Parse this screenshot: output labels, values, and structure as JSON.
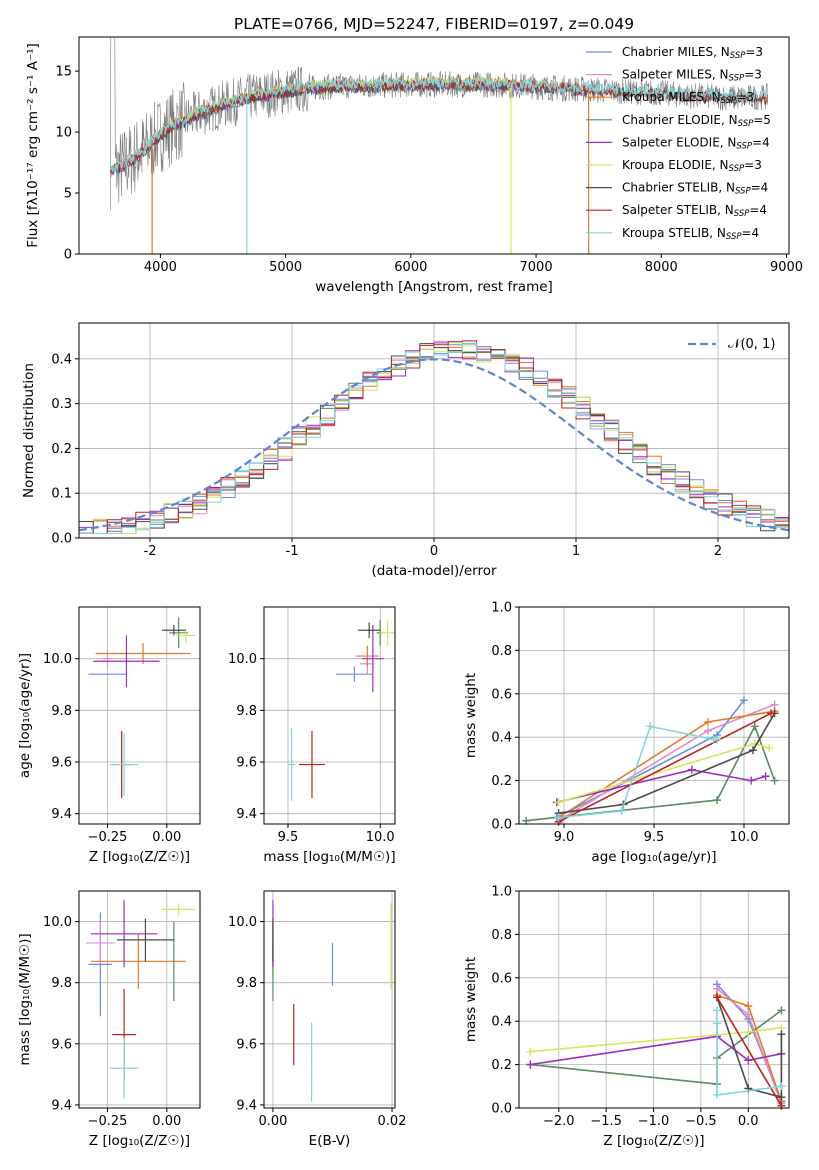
{
  "figure": {
    "title": "PLATE=0766, MJD=52247, FIBERID=0197, z=0.049"
  },
  "colors": {
    "chab_miles": "#6a8ee0",
    "salp_miles": "#e58ac9",
    "krou_miles": "#e07b27",
    "chab_elodie": "#5c8a62",
    "salp_elodie": "#9b2fbf",
    "krou_elodie": "#d8e55a",
    "chab_stelib": "#4a4a4a",
    "salp_stelib": "#c0201c",
    "krou_stelib": "#7fd6d9",
    "data_spec": "#7a7a7a",
    "normal_curve": "#5b86d6"
  },
  "chart_data": [
    {
      "id": "spectrum",
      "type": "line",
      "xlabel": "wavelength [Angstrom, rest frame]",
      "ylabel": "Flux [fλ10⁻¹⁷ erg cm⁻² s⁻¹ A⁻¹]",
      "xlim": [
        3350,
        9020
      ],
      "ylim": [
        0,
        17.8
      ],
      "xticks": [
        4000,
        5000,
        6000,
        7000,
        8000,
        9000
      ],
      "yticks": [
        0,
        5,
        10,
        15
      ],
      "grid": false,
      "legend_position": "top-right",
      "legend": [
        {
          "name": "Chabrier MILES, N",
          "sub": "SSP",
          "tail": "=3",
          "color_key": "chab_miles"
        },
        {
          "name": "Salpeter MILES, N",
          "sub": "SSP",
          "tail": "=3",
          "color_key": "salp_miles"
        },
        {
          "name": "Kroupa MILES, N",
          "sub": "SSP",
          "tail": "=3",
          "color_key": "krou_miles"
        },
        {
          "name": "Chabrier ELODIE, N",
          "sub": "SSP",
          "tail": "=5",
          "color_key": "chab_elodie"
        },
        {
          "name": "Salpeter ELODIE, N",
          "sub": "SSP",
          "tail": "=4",
          "color_key": "salp_elodie"
        },
        {
          "name": "Kroupa ELODIE, N",
          "sub": "SSP",
          "tail": "=3",
          "color_key": "krou_elodie"
        },
        {
          "name": "Chabrier STELIB, N",
          "sub": "SSP",
          "tail": "=4",
          "color_key": "chab_stelib"
        },
        {
          "name": "Salpeter STELIB, N",
          "sub": "SSP",
          "tail": "=4",
          "color_key": "salp_stelib"
        },
        {
          "name": "Kroupa STELIB, N",
          "sub": "SSP",
          "tail": "=4",
          "color_key": "krou_stelib"
        }
      ],
      "continuum": {
        "x": [
          3600,
          3700,
          3800,
          3900,
          4000,
          4100,
          4200,
          4300,
          4500,
          4700,
          4900,
          5100,
          5300,
          5500,
          5700,
          6000,
          6300,
          6600,
          6900,
          7200,
          7400,
          7600,
          7800,
          8000,
          8200,
          8400,
          8600,
          8850
        ],
        "y": [
          6.8,
          7.2,
          8.0,
          8.8,
          9.8,
          10.5,
          11.0,
          11.5,
          12.2,
          12.8,
          13.2,
          13.5,
          13.7,
          13.8,
          13.8,
          13.9,
          13.9,
          13.9,
          13.8,
          13.6,
          13.5,
          13.4,
          13.3,
          13.2,
          13.0,
          12.9,
          12.8,
          12.9
        ]
      },
      "model_ranges": {
        "miles": [
          3600,
          7400
        ],
        "elodie": [
          3900,
          6800
        ],
        "stelib": [
          3600,
          8850
        ]
      },
      "dips": [
        {
          "x": 3934,
          "y": 0.0
        },
        {
          "x": 4690,
          "y": 0.0
        },
        {
          "x": 6800,
          "y": 0.0
        },
        {
          "x": 7420,
          "y": 0.0
        }
      ]
    },
    {
      "id": "residuals",
      "type": "histogram",
      "xlabel": "(data-model)/error",
      "ylabel": "Normed distribution",
      "xlim": [
        -2.5,
        2.5
      ],
      "ylim": [
        0,
        0.48
      ],
      "xticks": [
        -2,
        -1,
        0,
        1,
        2
      ],
      "yticks": [
        0.0,
        0.1,
        0.2,
        0.3,
        0.4
      ],
      "grid": true,
      "legend_position": "top-right",
      "legend_label": "𝒩(0, 1)",
      "bin_width": 0.1
    },
    {
      "id": "age_vs_z",
      "type": "errorbar",
      "xlabel": "Z [log₁₀(Z/Z☉)]",
      "ylabel": "age  [log₁₀(age/yr)]",
      "xlim": [
        -0.37,
        0.14
      ],
      "ylim": [
        9.36,
        10.2
      ],
      "xticks": [
        -0.25,
        0.0
      ],
      "xticklabels": [
        "−0.25",
        "0.00"
      ],
      "yticks": [
        9.4,
        9.6,
        9.8,
        10.0
      ],
      "grid": true,
      "points": [
        {
          "series": "chab_miles",
          "x": -0.25,
          "xerr": 0.08,
          "y": 9.94,
          "yerr": 0.0
        },
        {
          "series": "salp_miles",
          "x": -0.25,
          "xerr": 0.02,
          "y": 10.0,
          "yerr": 0.03
        },
        {
          "series": "krou_miles",
          "x": -0.1,
          "xerr": 0.2,
          "y": 10.02,
          "yerr": 0.04
        },
        {
          "series": "chab_elodie",
          "x": 0.05,
          "xerr": 0.04,
          "y": 10.1,
          "yerr": 0.06
        },
        {
          "series": "salp_elodie",
          "x": -0.17,
          "xerr": 0.14,
          "y": 9.99,
          "yerr": 0.1
        },
        {
          "series": "krou_elodie",
          "x": 0.08,
          "xerr": 0.04,
          "y": 10.09,
          "yerr": 0.03
        },
        {
          "series": "chab_stelib",
          "x": 0.03,
          "xerr": 0.05,
          "y": 10.11,
          "yerr": 0.02
        },
        {
          "series": "salp_stelib",
          "x": -0.19,
          "xerr": 0.04,
          "y": 9.59,
          "yerr": 0.13
        },
        {
          "series": "krou_stelib",
          "x": -0.18,
          "xerr": 0.06,
          "y": 9.59,
          "yerr": 0.12
        }
      ]
    },
    {
      "id": "age_vs_mass",
      "type": "errorbar",
      "xlabel": "mass [log₁₀(M/M☉)]",
      "ylabel": "",
      "xlim": [
        9.37,
        10.08
      ],
      "ylim": [
        9.36,
        10.2
      ],
      "xticks": [
        9.5,
        10.0
      ],
      "xticklabels": [
        "9.5",
        "10.0"
      ],
      "yticks": [
        9.4,
        9.6,
        9.8,
        10.0
      ],
      "grid": true,
      "points": [
        {
          "series": "chab_miles",
          "x": 9.86,
          "xerr": 0.1,
          "y": 9.94,
          "yerr": 0.03
        },
        {
          "series": "salp_miles",
          "x": 9.93,
          "xerr": 0.04,
          "y": 9.98,
          "yerr": 0.04
        },
        {
          "series": "krou_miles",
          "x": 9.93,
          "xerr": 0.06,
          "y": 10.01,
          "yerr": 0.04
        },
        {
          "series": "chab_elodie",
          "x": 10.0,
          "xerr": 0.02,
          "y": 10.1,
          "yerr": 0.05
        },
        {
          "series": "salp_elodie",
          "x": 9.96,
          "xerr": 0.06,
          "y": 10.0,
          "yerr": 0.13
        },
        {
          "series": "krou_elodie",
          "x": 10.04,
          "xerr": 0.04,
          "y": 10.1,
          "yerr": 0.05
        },
        {
          "series": "chab_stelib",
          "x": 9.94,
          "xerr": 0.06,
          "y": 10.11,
          "yerr": 0.03
        },
        {
          "series": "salp_stelib",
          "x": 9.63,
          "xerr": 0.07,
          "y": 9.59,
          "yerr": 0.13
        },
        {
          "series": "krou_stelib",
          "x": 9.52,
          "xerr": 0.02,
          "y": 9.59,
          "yerr": 0.14
        }
      ]
    },
    {
      "id": "weight_vs_age",
      "type": "line",
      "xlabel": "age  [log₁₀(age/yr)]",
      "ylabel": "mass weight",
      "xlim": [
        8.75,
        10.25
      ],
      "ylim": [
        0.0,
        1.0
      ],
      "xticks": [
        9.0,
        9.5,
        10.0
      ],
      "xticklabels": [
        "9.0",
        "9.5",
        "10.0"
      ],
      "yticks": [
        0.0,
        0.2,
        0.4,
        0.6,
        0.8,
        1.0
      ],
      "grid": true,
      "series": [
        {
          "key": "chab_miles",
          "x": [
            8.96,
            9.85,
            10.0
          ],
          "y": [
            0.03,
            0.41,
            0.57
          ]
        },
        {
          "key": "salp_miles",
          "x": [
            8.98,
            9.8,
            10.17
          ],
          "y": [
            0.02,
            0.43,
            0.55
          ]
        },
        {
          "key": "krou_miles",
          "x": [
            8.97,
            9.8,
            10.17
          ],
          "y": [
            0.03,
            0.47,
            0.52
          ]
        },
        {
          "key": "chab_elodie",
          "x": [
            8.79,
            9.85,
            10.06,
            10.17
          ],
          "y": [
            0.015,
            0.11,
            0.45,
            0.2
          ]
        },
        {
          "key": "salp_elodie",
          "x": [
            8.96,
            9.71,
            10.04,
            10.12
          ],
          "y": [
            0.1,
            0.25,
            0.2,
            0.22
          ]
        },
        {
          "key": "krou_elodie",
          "x": [
            8.97,
            10.06,
            10.14
          ],
          "y": [
            0.1,
            0.37,
            0.35
          ]
        },
        {
          "key": "chab_stelib",
          "x": [
            8.97,
            9.33,
            10.05,
            10.17
          ],
          "y": [
            0.05,
            0.09,
            0.34,
            0.51
          ]
        },
        {
          "key": "salp_stelib",
          "x": [
            8.97,
            10.15
          ],
          "y": [
            0.01,
            0.51
          ]
        },
        {
          "key": "krou_stelib",
          "x": [
            8.97,
            9.32,
            9.48,
            9.83,
            9.85
          ],
          "y": [
            0.03,
            0.06,
            0.45,
            0.39,
            0.39
          ]
        }
      ]
    },
    {
      "id": "mass_vs_z",
      "type": "errorbar",
      "xlabel": "Z [log₁₀(Z/Z☉)]",
      "ylabel": "mass [log₁₀(M/M☉)]",
      "xlim": [
        -0.37,
        0.14
      ],
      "ylim": [
        9.39,
        10.1
      ],
      "xticks": [
        -0.25,
        0.0
      ],
      "xticklabels": [
        "−0.25",
        "0.00"
      ],
      "yticks": [
        9.4,
        9.6,
        9.8,
        10.0
      ],
      "grid": true,
      "points": [
        {
          "series": "chab_miles",
          "x": -0.28,
          "xerr": 0.05,
          "y": 9.86,
          "yerr": 0.17
        },
        {
          "series": "salp_miles",
          "x": -0.28,
          "xerr": 0.06,
          "y": 9.93,
          "yerr": 0.07
        },
        {
          "series": "krou_miles",
          "x": -0.12,
          "xerr": 0.2,
          "y": 9.87,
          "yerr": 0.09
        },
        {
          "series": "chab_elodie",
          "x": 0.03,
          "xerr": 0.0,
          "y": 9.87,
          "yerr": 0.13
        },
        {
          "series": "salp_elodie",
          "x": -0.18,
          "xerr": 0.14,
          "y": 9.96,
          "yerr": 0.11
        },
        {
          "series": "krou_elodie",
          "x": 0.05,
          "xerr": 0.07,
          "y": 10.04,
          "yerr": 0.02
        },
        {
          "series": "chab_stelib",
          "x": -0.09,
          "xerr": 0.12,
          "y": 9.94,
          "yerr": 0.07
        },
        {
          "series": "salp_stelib",
          "x": -0.18,
          "xerr": 0.05,
          "y": 9.63,
          "yerr": 0.15
        },
        {
          "series": "krou_stelib",
          "x": -0.18,
          "xerr": 0.06,
          "y": 9.52,
          "yerr": 0.1
        }
      ]
    },
    {
      "id": "mass_vs_ebv",
      "type": "errorbar",
      "xlabel": "E(B-V)",
      "ylabel": "",
      "xlim": [
        -0.0015,
        0.0205
      ],
      "ylim": [
        9.39,
        10.1
      ],
      "xticks": [
        0.0,
        0.02
      ],
      "xticklabels": [
        "0.00",
        "0.02"
      ],
      "yticks": [
        9.4,
        9.6,
        9.8,
        10.0
      ],
      "grid": true,
      "points": [
        {
          "series": "chab_miles",
          "x": 0.01,
          "xerr": 0.0,
          "y": 9.86,
          "yerr": 0.07
        },
        {
          "series": "salp_miles",
          "x": 0.0,
          "xerr": 0.0,
          "y": 9.93,
          "yerr": 0.07
        },
        {
          "series": "krou_miles",
          "x": 0.0,
          "xerr": 0.0,
          "y": 9.87,
          "yerr": 0.05
        },
        {
          "series": "chab_elodie",
          "x": 0.0,
          "xerr": 0.0,
          "y": 9.87,
          "yerr": 0.13
        },
        {
          "series": "salp_elodie",
          "x": 0.0,
          "xerr": 0.0,
          "y": 9.96,
          "yerr": 0.11
        },
        {
          "series": "krou_elodie",
          "x": 0.0198,
          "xerr": 0.0,
          "y": 9.92,
          "yerr": 0.14
        },
        {
          "series": "chab_stelib",
          "x": 0.0,
          "xerr": 0.0,
          "y": 9.94,
          "yerr": 0.07
        },
        {
          "series": "salp_stelib",
          "x": 0.0035,
          "xerr": 0.0,
          "y": 9.63,
          "yerr": 0.1
        },
        {
          "series": "krou_stelib",
          "x": 0.0065,
          "xerr": 0.0,
          "y": 9.54,
          "yerr": 0.13
        }
      ]
    },
    {
      "id": "weight_vs_z",
      "type": "line",
      "xlabel": "Z [log₁₀(Z/Z☉)]",
      "ylabel": "mass weight",
      "xlim": [
        -2.42,
        0.43
      ],
      "ylim": [
        0.0,
        1.0
      ],
      "xticks": [
        -2.0,
        -1.5,
        -1.0,
        -0.5,
        0.0
      ],
      "xticklabels": [
        "−2.0",
        "−1.5",
        "−1.0",
        "−0.5",
        "0.0"
      ],
      "yticks": [
        0.0,
        0.2,
        0.4,
        0.6,
        0.8,
        1.0
      ],
      "grid": true,
      "series": [
        {
          "key": "chab_miles",
          "x": [
            -0.33,
            0.0,
            0.35
          ],
          "y": [
            0.57,
            0.41,
            0.03
          ]
        },
        {
          "key": "salp_miles",
          "x": [
            -0.33,
            0.0,
            0.35
          ],
          "y": [
            0.55,
            0.43,
            0.02
          ]
        },
        {
          "key": "krou_miles",
          "x": [
            -0.33,
            0.0,
            0.35
          ],
          "y": [
            0.52,
            0.47,
            0.03
          ]
        },
        {
          "key": "chab_elodie",
          "x": [
            -2.3,
            -0.33,
            -0.33,
            0.35
          ],
          "y": [
            0.2,
            0.11,
            0.23,
            0.45
          ]
        },
        {
          "key": "salp_elodie",
          "x": [
            -2.3,
            -0.33,
            0.0,
            0.35
          ],
          "y": [
            0.2,
            0.33,
            0.22,
            0.25
          ]
        },
        {
          "key": "krou_elodie",
          "x": [
            -2.3,
            0.0,
            0.35
          ],
          "y": [
            0.26,
            0.35,
            0.37
          ]
        },
        {
          "key": "chab_stelib",
          "x": [
            -0.33,
            0.0,
            0.35,
            0.35
          ],
          "y": [
            0.51,
            0.09,
            0.05,
            0.34
          ]
        },
        {
          "key": "salp_stelib",
          "x": [
            -0.33,
            0.35
          ],
          "y": [
            0.51,
            0.01
          ]
        },
        {
          "key": "krou_stelib",
          "x": [
            -0.33,
            -0.33,
            -0.33,
            0.35
          ],
          "y": [
            0.45,
            0.39,
            0.06,
            0.1
          ]
        }
      ]
    }
  ]
}
